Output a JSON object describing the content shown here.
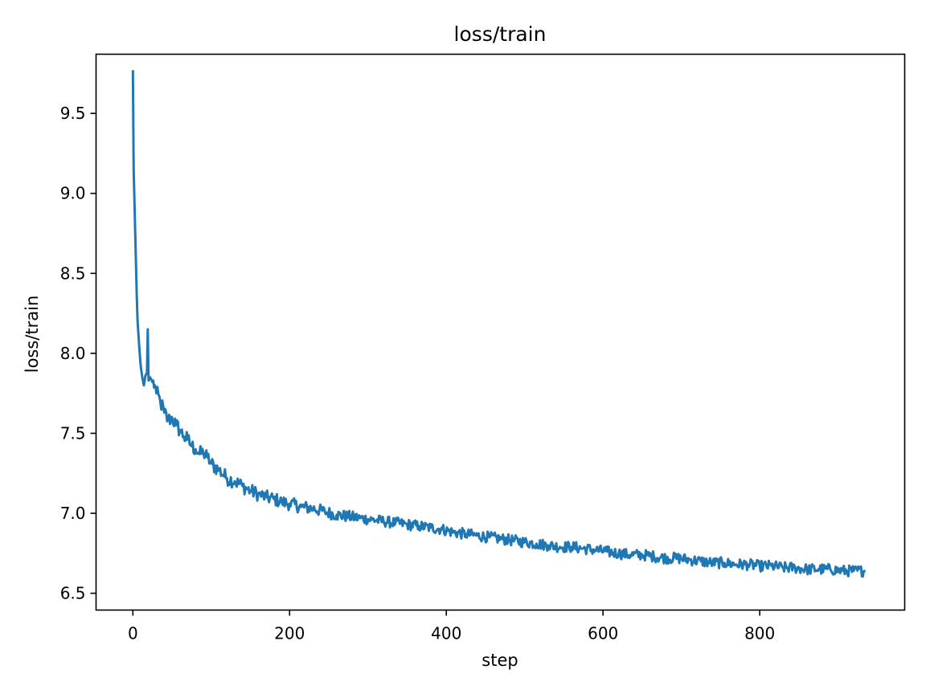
{
  "chart_data": {
    "type": "line",
    "title": "loss/train",
    "xlabel": "step",
    "ylabel": "loss/train",
    "xlim": [
      -47,
      985
    ],
    "ylim": [
      6.395,
      9.87
    ],
    "xticks": [
      0,
      200,
      400,
      600,
      800
    ],
    "yticks": [
      6.5,
      7.0,
      7.5,
      8.0,
      8.5,
      9.0,
      9.5
    ],
    "ytick_labels": [
      "6.5",
      "7.0",
      "7.5",
      "8.0",
      "8.5",
      "9.0",
      "9.5"
    ],
    "grid": false,
    "legend": "none",
    "series": [
      {
        "color": "#1f77b4",
        "x": [
          0,
          1,
          2,
          3,
          4,
          5,
          6,
          8,
          10,
          12,
          14,
          16,
          18,
          19,
          20,
          22,
          25,
          28,
          30,
          35,
          40,
          45,
          50,
          55,
          60,
          65,
          70,
          75,
          80,
          85,
          90,
          95,
          100,
          110,
          120,
          130,
          140,
          150,
          160,
          170,
          180,
          190,
          200,
          215,
          230,
          245,
          260,
          275,
          290,
          305,
          320,
          335,
          350,
          365,
          380,
          395,
          410,
          425,
          440,
          455,
          470,
          485,
          500,
          515,
          530,
          545,
          560,
          575,
          590,
          605,
          620,
          635,
          650,
          665,
          680,
          695,
          710,
          725,
          740,
          755,
          770,
          785,
          800,
          815,
          830,
          845,
          860,
          875,
          890,
          905,
          920,
          935
        ],
        "y": [
          9.77,
          9.15,
          8.95,
          8.75,
          8.55,
          8.35,
          8.2,
          8.05,
          7.92,
          7.85,
          7.8,
          7.86,
          7.88,
          8.15,
          7.83,
          7.85,
          7.82,
          7.8,
          7.75,
          7.7,
          7.63,
          7.58,
          7.6,
          7.55,
          7.52,
          7.48,
          7.46,
          7.42,
          7.4,
          7.37,
          7.38,
          7.35,
          7.31,
          7.27,
          7.22,
          7.2,
          7.17,
          7.14,
          7.12,
          7.1,
          7.09,
          7.07,
          7.06,
          7.04,
          7.03,
          7.01,
          6.99,
          6.98,
          6.97,
          6.96,
          6.95,
          6.94,
          6.93,
          6.92,
          6.91,
          6.9,
          6.88,
          6.87,
          6.86,
          6.85,
          6.84,
          6.83,
          6.82,
          6.81,
          6.8,
          6.79,
          6.79,
          6.78,
          6.77,
          6.76,
          6.75,
          6.74,
          6.74,
          6.73,
          6.72,
          6.72,
          6.71,
          6.7,
          6.69,
          6.69,
          6.68,
          6.68,
          6.67,
          6.67,
          6.66,
          6.66,
          6.65,
          6.65,
          6.65,
          6.64,
          6.64,
          6.64
        ]
      }
    ]
  }
}
